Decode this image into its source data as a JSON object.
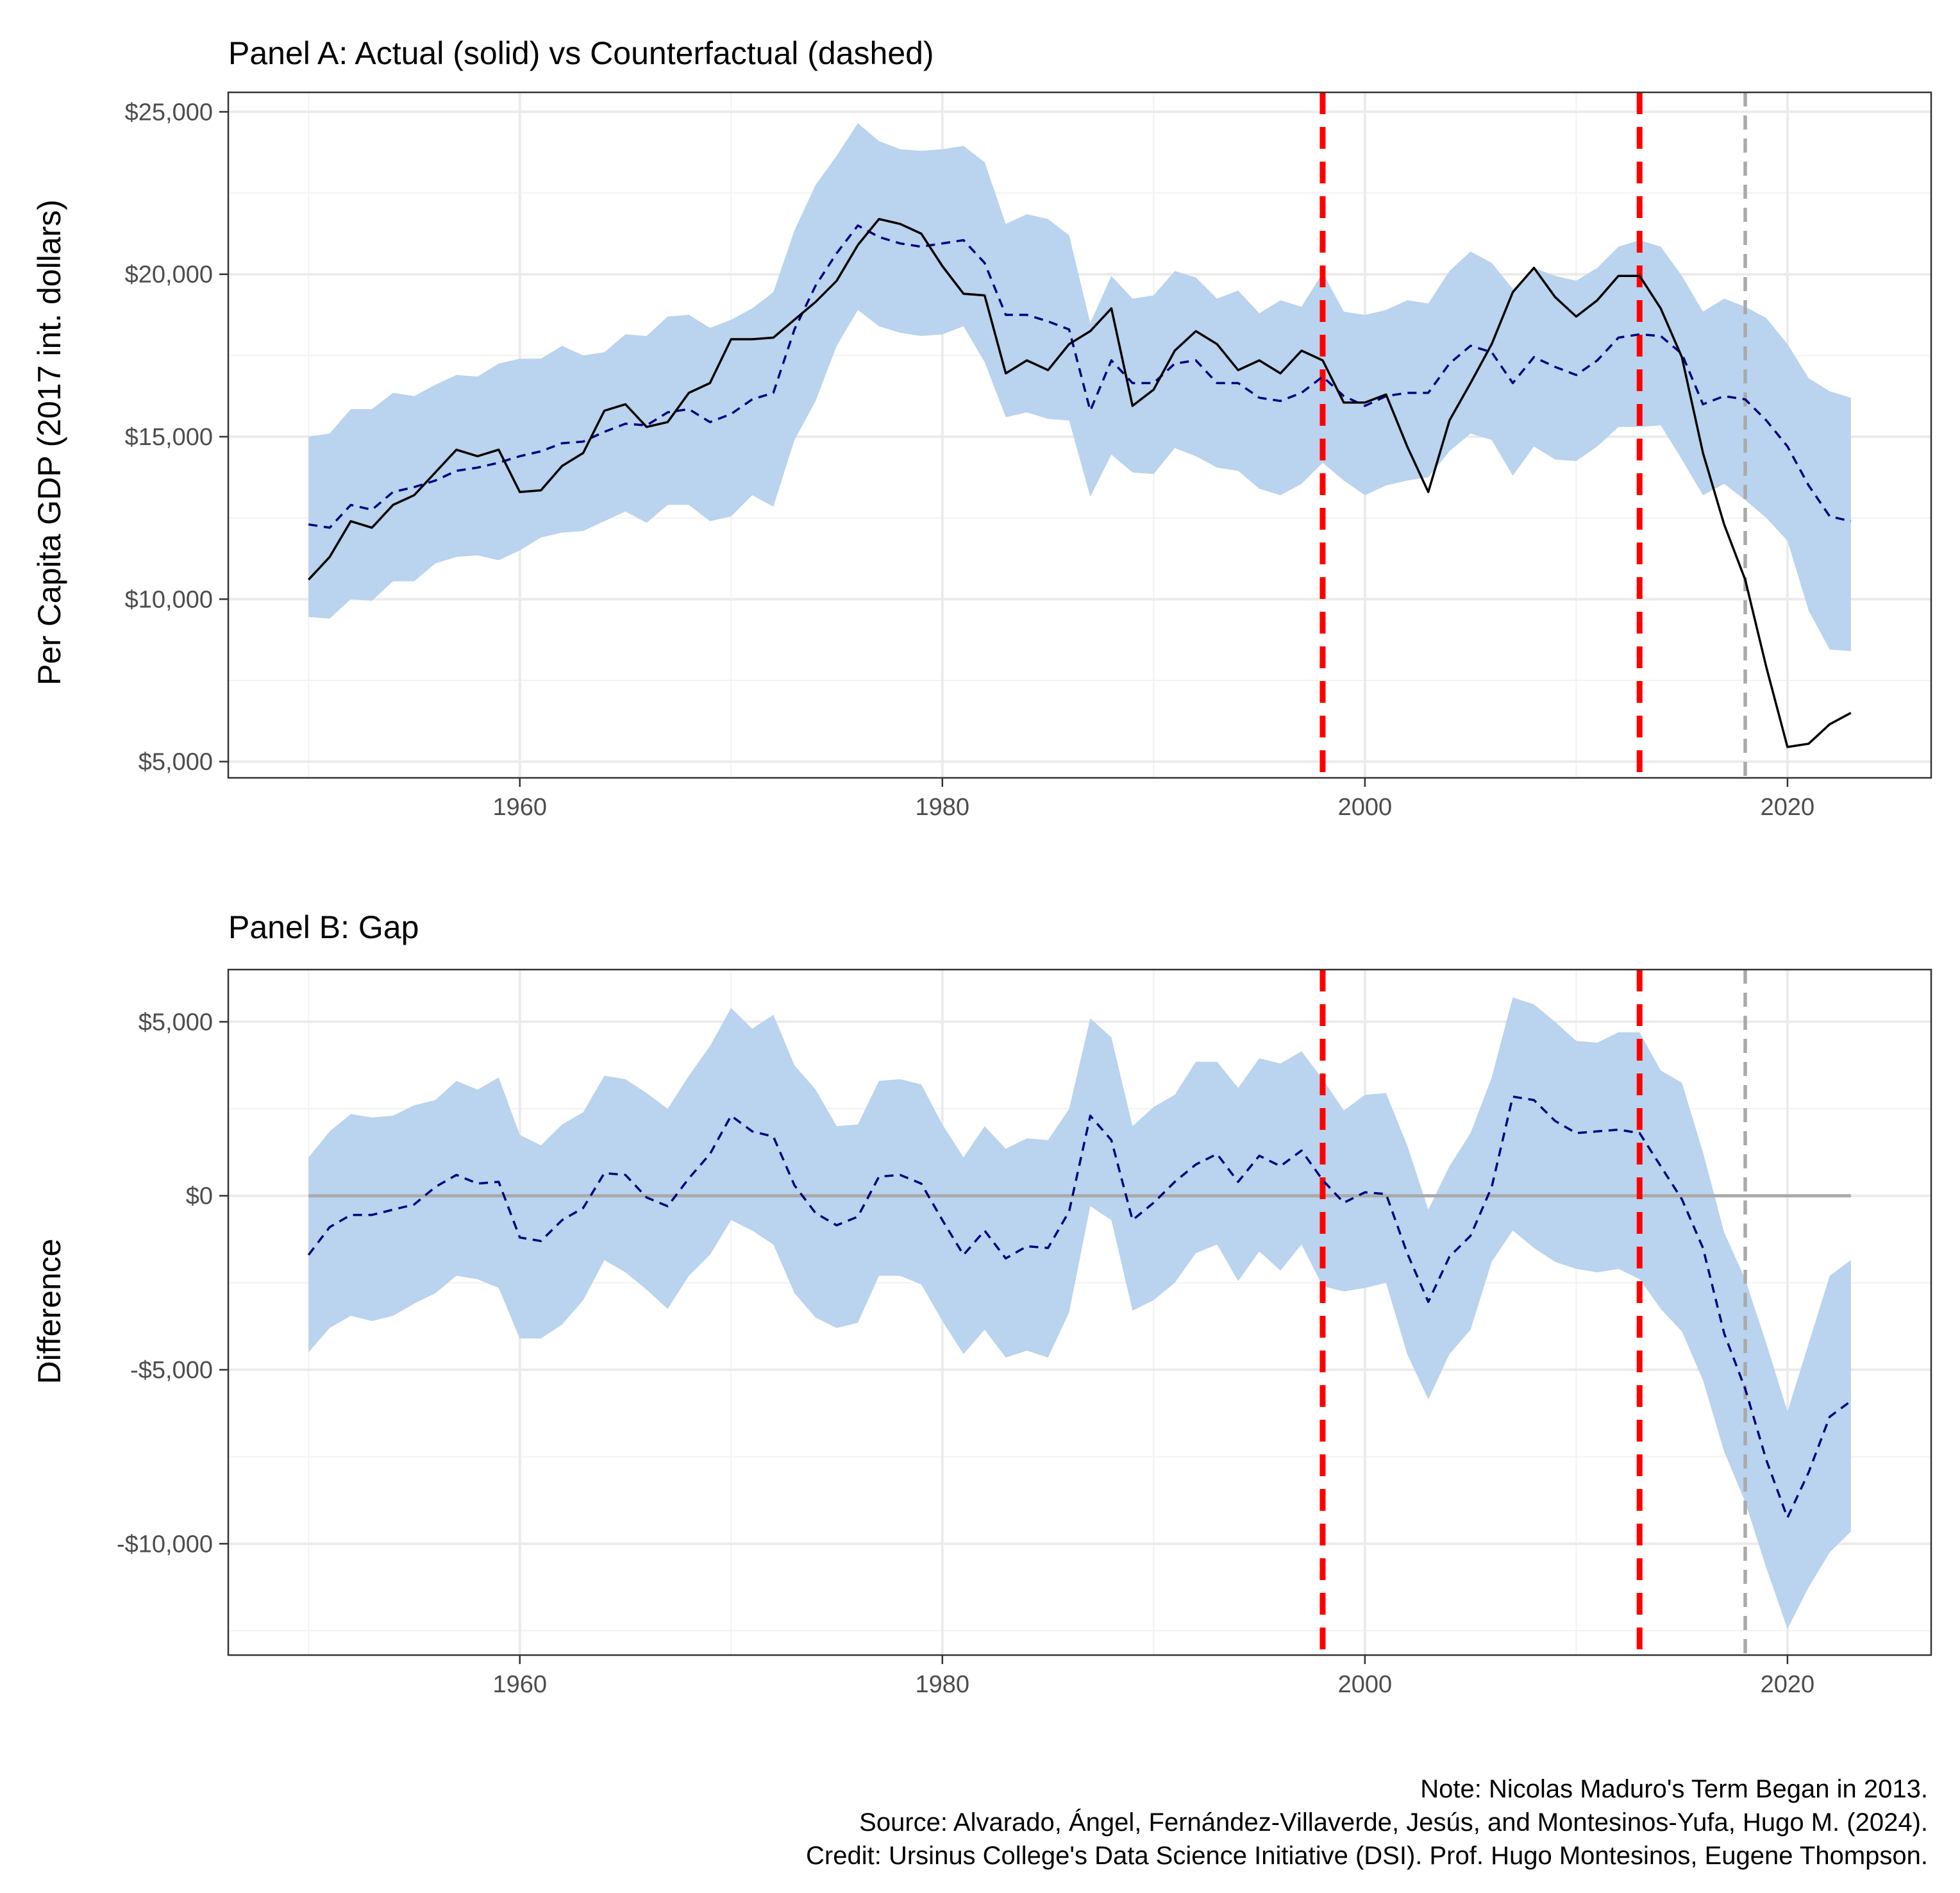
{
  "chart_data": [
    {
      "id": "panelA",
      "type": "line",
      "title": "Panel A: Actual (solid) vs Counterfactual (dashed)",
      "ylabel": "Per Capita GDP (2017 int. dollars)",
      "xlim": [
        1946.2,
        2026.8
      ],
      "ylim": [
        4500,
        25600
      ],
      "x_ticks": [
        1960,
        1980,
        2000,
        2020
      ],
      "x_tick_labels": [
        "1960",
        "1980",
        "2000",
        "2020"
      ],
      "y_ticks": [
        5000,
        10000,
        15000,
        20000,
        25000
      ],
      "y_tick_labels": [
        "$5,000",
        "$10,000",
        "$15,000",
        "$20,000",
        "$25,000"
      ],
      "vlines": [
        {
          "x": 1998,
          "color": "#ff0000",
          "style": "dashed"
        },
        {
          "x": 2013,
          "color": "#ff0000",
          "style": "dashed"
        },
        {
          "x": 2018,
          "color": "#aaaaaa",
          "style": "dashed"
        }
      ],
      "band_color": "#bad3ee",
      "x": [
        1950,
        1951,
        1952,
        1953,
        1954,
        1955,
        1956,
        1957,
        1958,
        1959,
        1960,
        1961,
        1962,
        1963,
        1964,
        1965,
        1966,
        1967,
        1968,
        1969,
        1970,
        1971,
        1972,
        1973,
        1974,
        1975,
        1976,
        1977,
        1978,
        1979,
        1980,
        1981,
        1982,
        1983,
        1984,
        1985,
        1986,
        1987,
        1988,
        1989,
        1990,
        1991,
        1992,
        1993,
        1994,
        1995,
        1996,
        1997,
        1998,
        1999,
        2000,
        2001,
        2002,
        2003,
        2004,
        2005,
        2006,
        2007,
        2008,
        2009,
        2010,
        2011,
        2012,
        2013,
        2014,
        2015,
        2016,
        2017,
        2018,
        2019,
        2020,
        2021,
        2022,
        2023
      ],
      "actual": [
        10600,
        11300,
        12400,
        12200,
        12900,
        13200,
        13900,
        14600,
        14400,
        14600,
        13300,
        13350,
        14100,
        14500,
        15800,
        16000,
        15300,
        15450,
        16350,
        16650,
        18000,
        18000,
        18050,
        18600,
        19150,
        19800,
        20900,
        21700,
        21550,
        21250,
        20250,
        19400,
        19350,
        16950,
        17350,
        17050,
        17850,
        18250,
        18950,
        15950,
        16450,
        17650,
        18250,
        17850,
        17050,
        17350,
        16950,
        17650,
        17350,
        16050,
        16050,
        16300,
        14700,
        13300,
        15500,
        16650,
        17850,
        19450,
        20200,
        19300,
        18700,
        19200,
        19950,
        19950,
        18950,
        17450,
        14500,
        12300,
        10600,
        7900,
        5450,
        5550,
        6150,
        6500
      ],
      "counterfactual": [
        12300,
        12200,
        12900,
        12750,
        13300,
        13450,
        13650,
        13950,
        14050,
        14200,
        14400,
        14550,
        14800,
        14850,
        15150,
        15400,
        15350,
        15750,
        15850,
        15450,
        15700,
        16150,
        16350,
        18300,
        19650,
        20650,
        21500,
        21150,
        20950,
        20850,
        20950,
        21050,
        20350,
        18750,
        18750,
        18550,
        18300,
        15800,
        17350,
        16650,
        16650,
        17250,
        17350,
        16650,
        16650,
        16200,
        16100,
        16350,
        16850,
        16250,
        15950,
        16250,
        16350,
        16350,
        17250,
        17800,
        17600,
        16650,
        17450,
        17150,
        16900,
        17350,
        18050,
        18150,
        18100,
        17550,
        16000,
        16250,
        16150,
        15500,
        14700,
        13500,
        12550,
        12400
      ],
      "lower": [
        9450,
        9400,
        10000,
        9950,
        10550,
        10550,
        11100,
        11300,
        11350,
        11200,
        11500,
        11900,
        12050,
        12100,
        12400,
        12700,
        12350,
        12900,
        12900,
        12400,
        12550,
        13200,
        12850,
        14900,
        16100,
        17800,
        18900,
        18400,
        18200,
        18100,
        18150,
        18400,
        17300,
        15600,
        15750,
        15550,
        15500,
        13150,
        14450,
        13900,
        13850,
        14650,
        14400,
        14050,
        13950,
        13400,
        13200,
        13550,
        14200,
        13650,
        13200,
        13500,
        13650,
        13750,
        14550,
        15100,
        14900,
        13800,
        14700,
        14300,
        14250,
        14700,
        15300,
        15300,
        15350,
        14300,
        13200,
        13550,
        13050,
        12500,
        11800,
        9650,
        8450,
        8400
      ],
      "upper": [
        15000,
        15100,
        15850,
        15850,
        16350,
        16250,
        16600,
        16900,
        16850,
        17250,
        17400,
        17400,
        17800,
        17500,
        17600,
        18150,
        18100,
        18700,
        18750,
        18350,
        18600,
        18950,
        19450,
        21350,
        22750,
        23650,
        24650,
        24100,
        23850,
        23800,
        23850,
        23950,
        23450,
        21550,
        21850,
        21700,
        21200,
        18500,
        19950,
        19250,
        19350,
        20100,
        19900,
        19250,
        19500,
        18800,
        19200,
        19000,
        20050,
        18850,
        18750,
        18900,
        19200,
        19100,
        20100,
        20700,
        20350,
        19550,
        20200,
        19950,
        19800,
        20200,
        20850,
        21050,
        20850,
        19950,
        18850,
        19250,
        19000,
        18650,
        17850,
        16800,
        16400,
        16200
      ]
    },
    {
      "id": "panelB",
      "type": "line",
      "title": "Panel B: Gap",
      "ylabel": "Difference",
      "xlim": [
        1946.2,
        2026.8
      ],
      "ylim": [
        -13200,
        6500
      ],
      "x_ticks": [
        1960,
        1980,
        2000,
        2020
      ],
      "x_tick_labels": [
        "1960",
        "1980",
        "2000",
        "2020"
      ],
      "y_ticks": [
        -10000,
        -5000,
        0,
        5000
      ],
      "y_tick_labels": [
        "-$10,000",
        "-$5,000",
        "$0",
        "$5,000"
      ],
      "hline": {
        "y": 0,
        "color": "#aaaaaa"
      },
      "vlines": [
        {
          "x": 1998,
          "color": "#ff0000",
          "style": "dashed"
        },
        {
          "x": 2013,
          "color": "#ff0000",
          "style": "dashed"
        },
        {
          "x": 2018,
          "color": "#aaaaaa",
          "style": "dashed"
        }
      ],
      "band_color": "#bad3ee",
      "x": [
        1950,
        1951,
        1952,
        1953,
        1954,
        1955,
        1956,
        1957,
        1958,
        1959,
        1960,
        1961,
        1962,
        1963,
        1964,
        1965,
        1966,
        1967,
        1968,
        1969,
        1970,
        1971,
        1972,
        1973,
        1974,
        1975,
        1976,
        1977,
        1978,
        1979,
        1980,
        1981,
        1982,
        1983,
        1984,
        1985,
        1986,
        1987,
        1988,
        1989,
        1990,
        1991,
        1992,
        1993,
        1994,
        1995,
        1996,
        1997,
        1998,
        1999,
        2000,
        2001,
        2002,
        2003,
        2004,
        2005,
        2006,
        2007,
        2008,
        2009,
        2010,
        2011,
        2012,
        2013,
        2014,
        2015,
        2016,
        2017,
        2018,
        2019,
        2020,
        2021,
        2022,
        2023
      ],
      "gap": [
        -1700,
        -900,
        -550,
        -550,
        -400,
        -250,
        250,
        600,
        350,
        400,
        -1200,
        -1300,
        -700,
        -350,
        650,
        600,
        -50,
        -300,
        500,
        1200,
        2300,
        1850,
        1700,
        300,
        -500,
        -850,
        -600,
        550,
        600,
        350,
        -700,
        -1700,
        -1000,
        -1800,
        -1450,
        -1500,
        -450,
        2300,
        1600,
        -700,
        -200,
        400,
        900,
        1200,
        400,
        1150,
        850,
        1300,
        450,
        -200,
        100,
        50,
        -1650,
        -3050,
        -1750,
        -1150,
        250,
        2850,
        2750,
        2150,
        1800,
        1850,
        1900,
        1800,
        850,
        -100,
        -1500,
        -3950,
        -5550,
        -7600,
        -9250,
        -7950,
        -6350,
        -5900
      ],
      "lower": [
        -4500,
        -3800,
        -3450,
        -3600,
        -3450,
        -3100,
        -2800,
        -2300,
        -2400,
        -2650,
        -4100,
        -4100,
        -3700,
        -3000,
        -1850,
        -2200,
        -2700,
        -3250,
        -2300,
        -1700,
        -700,
        -1000,
        -1400,
        -2800,
        -3500,
        -3800,
        -3650,
        -2300,
        -2300,
        -2550,
        -3600,
        -4550,
        -3850,
        -4650,
        -4450,
        -4650,
        -3350,
        -300,
        -700,
        -3300,
        -3000,
        -2500,
        -1650,
        -1400,
        -2450,
        -1600,
        -2150,
        -1400,
        -2600,
        -2750,
        -2650,
        -2500,
        -4550,
        -5850,
        -4550,
        -3850,
        -1900,
        -1000,
        -1500,
        -1900,
        -2100,
        -2200,
        -2100,
        -2400,
        -3250,
        -3900,
        -5300,
        -7350,
        -8800,
        -10700,
        -12450,
        -11250,
        -10250,
        -9650
      ],
      "upper": [
        1100,
        1850,
        2350,
        2250,
        2300,
        2600,
        2750,
        3300,
        3050,
        3400,
        1750,
        1450,
        2050,
        2400,
        3450,
        3350,
        2950,
        2500,
        3450,
        4300,
        5400,
        4800,
        5200,
        3750,
        3050,
        2000,
        2050,
        3300,
        3350,
        3200,
        2050,
        1100,
        2000,
        1350,
        1650,
        1600,
        2500,
        5100,
        4550,
        2000,
        2550,
        2900,
        3850,
        3850,
        3100,
        3950,
        3800,
        4150,
        3350,
        2450,
        2900,
        2950,
        1450,
        -400,
        850,
        1800,
        3400,
        5700,
        5500,
        5000,
        4450,
        4400,
        4700,
        4700,
        3600,
        3250,
        1250,
        -1050,
        -2400,
        -4250,
        -6200,
        -4250,
        -2300,
        -1850
      ]
    }
  ],
  "caption": {
    "note": "Note: Nicolas Maduro's Term Began in 2013.",
    "source": "Source: Alvarado, Ángel, Fernández-Villaverde, Jesús, and Montesinos-Yufa, Hugo M. (2024).",
    "credit": "Credit: Ursinus College's Data Science Initiative (DSI). Prof. Hugo Montesinos, Eugene Thompson."
  }
}
